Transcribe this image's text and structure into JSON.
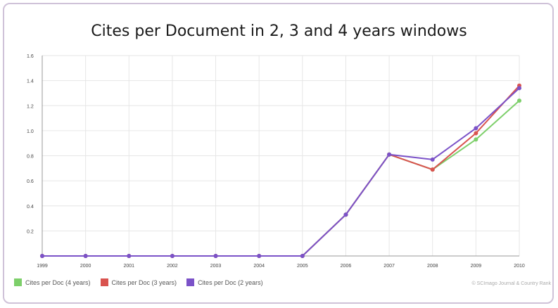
{
  "chart_data": {
    "type": "line",
    "title": "Cites per Document in 2, 3 and 4 years windows",
    "x": [
      1999,
      2000,
      2001,
      2002,
      2003,
      2004,
      2005,
      2006,
      2007,
      2008,
      2009,
      2010
    ],
    "ylim": [
      0,
      1.6
    ],
    "yticks": [
      0.2,
      0.4,
      0.6,
      0.8,
      1.0,
      1.2,
      1.4,
      1.6
    ],
    "ytick_labels": [
      "0.2",
      "0.4",
      "0.6",
      "0.8",
      "1.0",
      "1.2",
      "1.4",
      "1.6"
    ],
    "grid": true,
    "legend_position": "bottom-left",
    "series": [
      {
        "name": "Cites per Doc (4 years)",
        "color": "#7dcf6a",
        "values": [
          0,
          0,
          0,
          0,
          0,
          0,
          0,
          0.33,
          0.81,
          0.69,
          0.93,
          1.24
        ]
      },
      {
        "name": "Cites per Doc (3 years)",
        "color": "#d9534f",
        "values": [
          0,
          0,
          0,
          0,
          0,
          0,
          0,
          0.33,
          0.81,
          0.69,
          0.98,
          1.36
        ]
      },
      {
        "name": "Cites per Doc (2 years)",
        "color": "#7b52c8",
        "values": [
          0,
          0,
          0,
          0,
          0,
          0,
          0,
          0.33,
          0.81,
          0.77,
          1.02,
          1.34
        ]
      }
    ]
  },
  "credit": "© SCImago Journal & Country Rank"
}
